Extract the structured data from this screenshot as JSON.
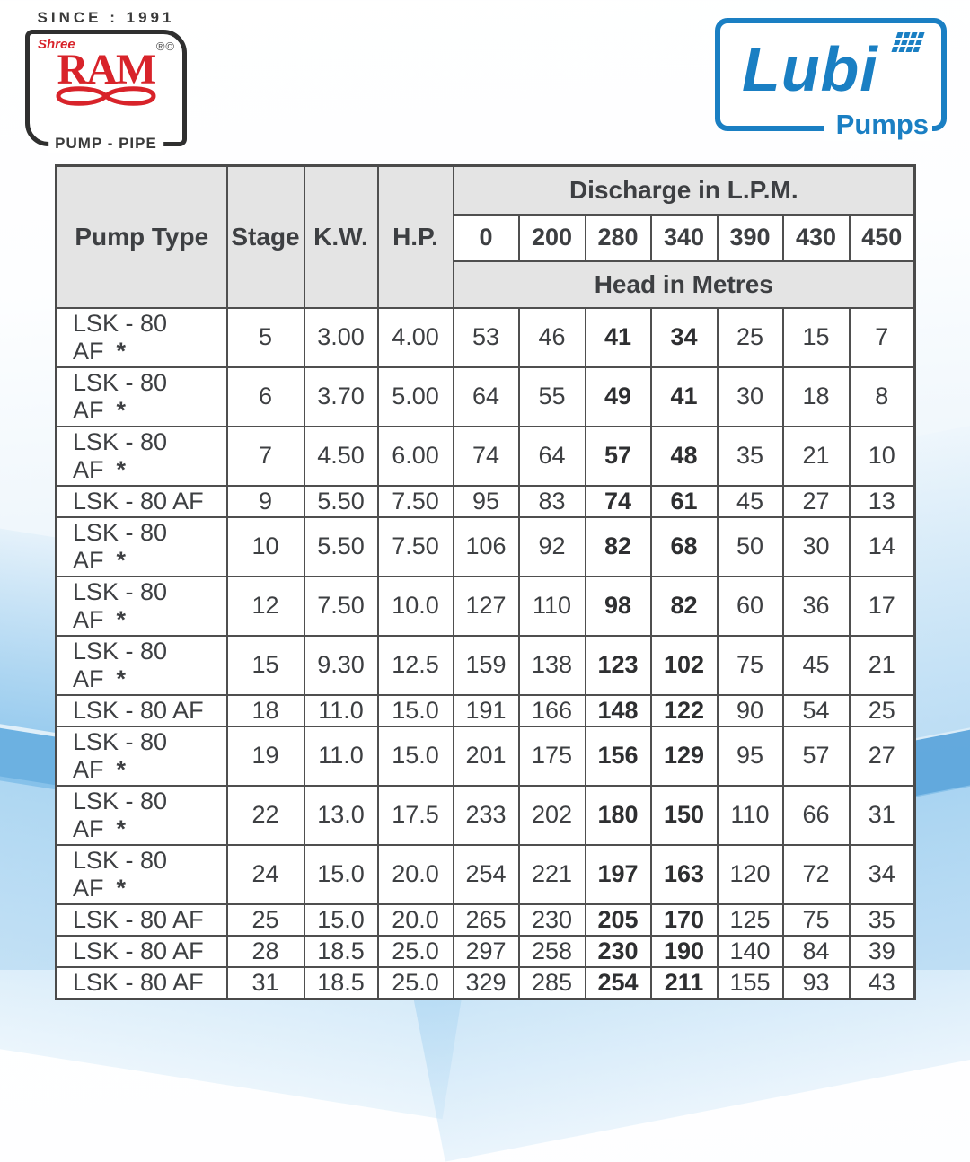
{
  "branding": {
    "ram_logo": {
      "since": "SINCE : 1991",
      "shree": "Shree",
      "name": "RAM",
      "marks": "®©",
      "tagline": "PUMP - PIPE",
      "red": "#d8232a",
      "dark": "#3a3a3a"
    },
    "lubi_logo": {
      "name": "Lubi",
      "tagline": "Pumps",
      "blue": "#1a7fc3"
    }
  },
  "table": {
    "headers": {
      "pump_type": "Pump Type",
      "stage": "Stage",
      "kw": "K.W.",
      "hp": "H.P.",
      "discharge": "Discharge in L.P.M.",
      "head": "Head in Metres",
      "discharge_values": [
        "0",
        "200",
        "280",
        "340",
        "390",
        "430",
        "450"
      ]
    },
    "bold_discharge_columns": [
      2,
      3
    ],
    "rows": [
      {
        "pump_type": "LSK - 80 AF",
        "star": "*",
        "stage": "5",
        "kw": "3.00",
        "hp": "4.00",
        "heads": [
          "53",
          "46",
          "41",
          "34",
          "25",
          "15",
          "7"
        ]
      },
      {
        "pump_type": "LSK - 80 AF",
        "star": "*",
        "stage": "6",
        "kw": "3.70",
        "hp": "5.00",
        "heads": [
          "64",
          "55",
          "49",
          "41",
          "30",
          "18",
          "8"
        ]
      },
      {
        "pump_type": "LSK - 80 AF",
        "star": "*",
        "stage": "7",
        "kw": "4.50",
        "hp": "6.00",
        "heads": [
          "74",
          "64",
          "57",
          "48",
          "35",
          "21",
          "10"
        ]
      },
      {
        "pump_type": "LSK - 80 AF",
        "star": "",
        "stage": "9",
        "kw": "5.50",
        "hp": "7.50",
        "heads": [
          "95",
          "83",
          "74",
          "61",
          "45",
          "27",
          "13"
        ]
      },
      {
        "pump_type": "LSK - 80 AF",
        "star": "*",
        "stage": "10",
        "kw": "5.50",
        "hp": "7.50",
        "heads": [
          "106",
          "92",
          "82",
          "68",
          "50",
          "30",
          "14"
        ]
      },
      {
        "pump_type": "LSK - 80 AF",
        "star": "*",
        "stage": "12",
        "kw": "7.50",
        "hp": "10.0",
        "heads": [
          "127",
          "110",
          "98",
          "82",
          "60",
          "36",
          "17"
        ]
      },
      {
        "pump_type": "LSK - 80 AF",
        "star": "*",
        "stage": "15",
        "kw": "9.30",
        "hp": "12.5",
        "heads": [
          "159",
          "138",
          "123",
          "102",
          "75",
          "45",
          "21"
        ]
      },
      {
        "pump_type": "LSK - 80 AF",
        "star": "",
        "stage": "18",
        "kw": "11.0",
        "hp": "15.0",
        "heads": [
          "191",
          "166",
          "148",
          "122",
          "90",
          "54",
          "25"
        ]
      },
      {
        "pump_type": "LSK - 80 AF",
        "star": "*",
        "stage": "19",
        "kw": "11.0",
        "hp": "15.0",
        "heads": [
          "201",
          "175",
          "156",
          "129",
          "95",
          "57",
          "27"
        ]
      },
      {
        "pump_type": "LSK - 80 AF",
        "star": "*",
        "stage": "22",
        "kw": "13.0",
        "hp": "17.5",
        "heads": [
          "233",
          "202",
          "180",
          "150",
          "110",
          "66",
          "31"
        ]
      },
      {
        "pump_type": "LSK - 80 AF",
        "star": "*",
        "stage": "24",
        "kw": "15.0",
        "hp": "20.0",
        "heads": [
          "254",
          "221",
          "197",
          "163",
          "120",
          "72",
          "34"
        ]
      },
      {
        "pump_type": "LSK - 80 AF",
        "star": "",
        "stage": "25",
        "kw": "15.0",
        "hp": "20.0",
        "heads": [
          "265",
          "230",
          "205",
          "170",
          "125",
          "75",
          "35"
        ]
      },
      {
        "pump_type": "LSK - 80 AF",
        "star": "",
        "stage": "28",
        "kw": "18.5",
        "hp": "25.0",
        "heads": [
          "297",
          "258",
          "230",
          "190",
          "140",
          "84",
          "39"
        ]
      },
      {
        "pump_type": "LSK - 80 AF",
        "star": "",
        "stage": "31",
        "kw": "18.5",
        "hp": "25.0",
        "heads": [
          "329",
          "285",
          "254",
          "211",
          "155",
          "93",
          "43"
        ]
      }
    ]
  }
}
